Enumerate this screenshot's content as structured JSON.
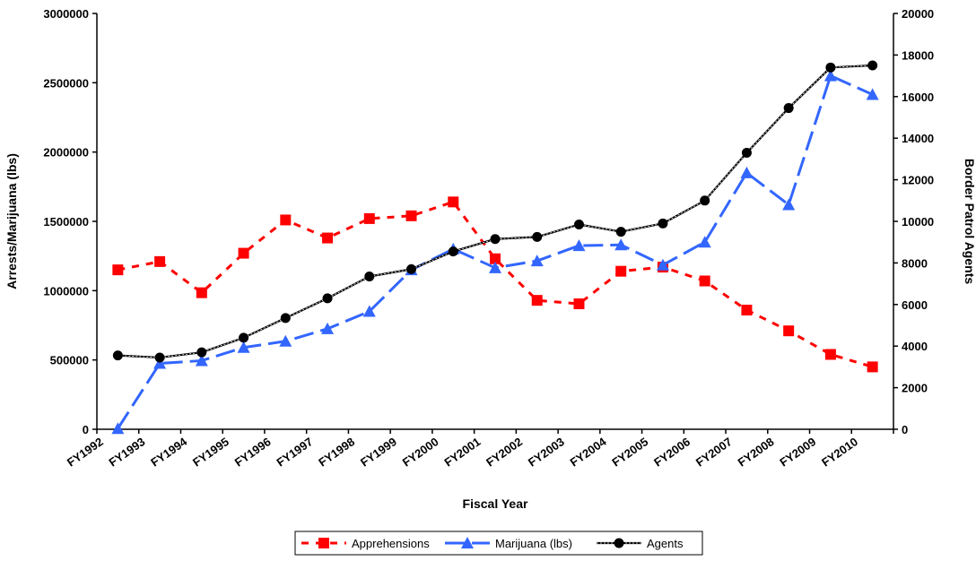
{
  "chart_data": {
    "type": "line",
    "title": "",
    "xlabel": "Fiscal Year",
    "ylabel": "Arrests/Marijuana (lbs)",
    "y2label": "Border Patrol Agents",
    "categories": [
      "FY1992",
      "FY1993",
      "FY1994",
      "FY1995",
      "FY1996",
      "FY1997",
      "FY1998",
      "FY1999",
      "FY2000",
      "FY2001",
      "FY2002",
      "FY2003",
      "FY2004",
      "FY2005",
      "FY2006",
      "FY2007",
      "FY2008",
      "FY2009",
      "FY2010"
    ],
    "ylim": [
      0,
      3000000
    ],
    "y2lim": [
      0,
      20000
    ],
    "yticks": [
      "0",
      "500000",
      "1000000",
      "1500000",
      "2000000",
      "2500000",
      "3000000"
    ],
    "y2ticks": [
      "0",
      "2000",
      "4000",
      "6000",
      "8000",
      "10000",
      "12000",
      "14000",
      "16000",
      "18000",
      "20000"
    ],
    "grid": false,
    "legend_position": "bottom",
    "series": [
      {
        "name": "Apprehensions",
        "axis": "left",
        "color": "#ff0000",
        "style": "dashed-square",
        "values": [
          1150000,
          1210000,
          985000,
          1270000,
          1510000,
          1380000,
          1520000,
          1540000,
          1640000,
          1230000,
          930000,
          905000,
          1140000,
          1170000,
          1070000,
          860000,
          710000,
          540000,
          450000
        ]
      },
      {
        "name": "Marijuana (lbs)",
        "axis": "left",
        "color": "#3366ff",
        "style": "longdash-triangle",
        "values": [
          5000,
          475000,
          495000,
          590000,
          635000,
          725000,
          850000,
          1150000,
          1300000,
          1165000,
          1215000,
          1325000,
          1330000,
          1185000,
          1350000,
          1850000,
          1620000,
          2550000,
          2415000
        ]
      },
      {
        "name": "Agents",
        "axis": "right",
        "color": "#000000",
        "style": "solid-circle",
        "values": [
          3550,
          3450,
          3700,
          4400,
          5350,
          6300,
          7350,
          7700,
          8550,
          9150,
          9250,
          9850,
          9500,
          9900,
          11000,
          13300,
          15450,
          17400,
          17500
        ]
      }
    ]
  }
}
